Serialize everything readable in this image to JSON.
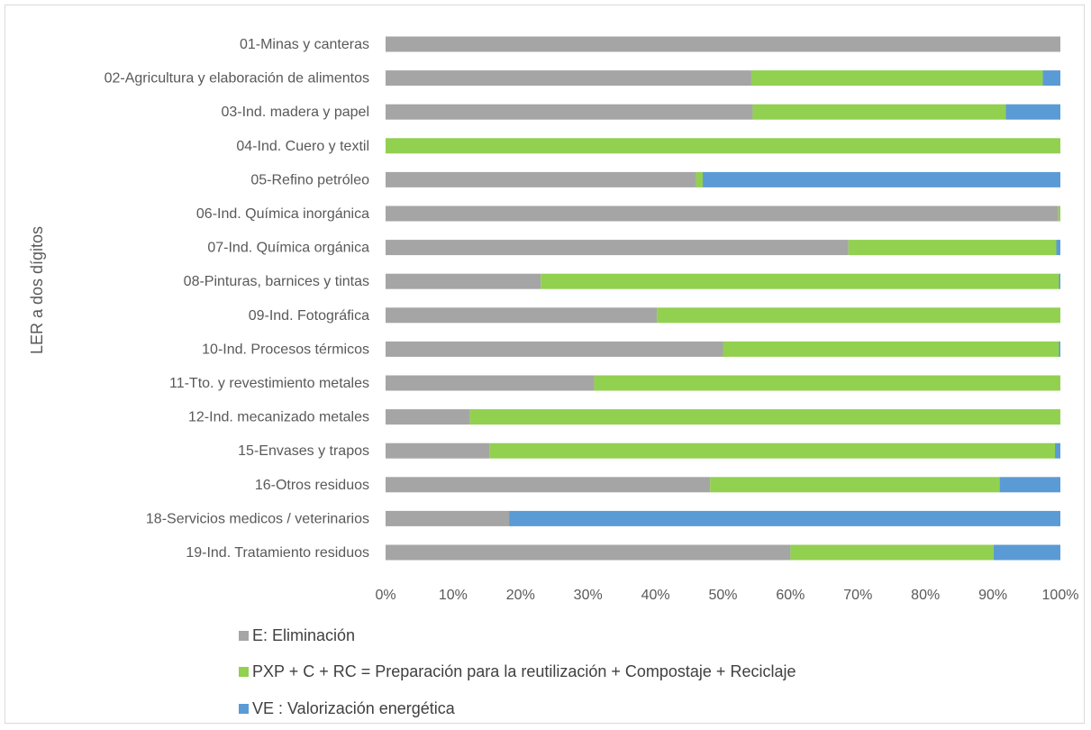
{
  "chart_data": {
    "type": "bar",
    "orientation": "horizontal",
    "stacked": "percent",
    "title": "",
    "xlabel": "",
    "ylabel": "LER a dos dígitos",
    "xlim": [
      0,
      100
    ],
    "x_ticks": [
      "0%",
      "10%",
      "20%",
      "30%",
      "40%",
      "50%",
      "60%",
      "70%",
      "80%",
      "90%",
      "100%"
    ],
    "grid": false,
    "legend_position": "bottom",
    "categories": [
      "01-Minas y canteras",
      "02-Agricultura y elaboración de alimentos",
      "03-Ind. madera y papel",
      "04-Ind. Cuero y textil",
      "05-Refino petróleo",
      "06-Ind. Química inorgánica",
      "07-Ind. Química orgánica",
      "08-Pinturas, barnices y tintas",
      "09-Ind. Fotográfica",
      "10-Ind. Procesos térmicos",
      "11-Tto. y revestimiento metales",
      "12-Ind. mecanizado metales",
      "15-Envases y trapos",
      "16-Otros residuos",
      "18-Servicios medicos / veterinarios",
      "19-Ind. Tratamiento residuos"
    ],
    "series": [
      {
        "name": "E: Eliminación",
        "color": "#a5a5a5",
        "values": [
          100,
          54.2,
          54.4,
          0,
          46,
          99.7,
          68.6,
          23,
          40.2,
          50,
          30.9,
          12.5,
          15.4,
          48.1,
          18.3,
          60
        ]
      },
      {
        "name": "PXP + C + RC = Preparación para la reutilización + Compostaje +  Reciclaje",
        "color": "#92d050",
        "values": [
          0,
          43.2,
          37.5,
          100,
          1,
          0.3,
          30.8,
          76.8,
          59.8,
          49.8,
          69.1,
          87.5,
          83.8,
          42.9,
          0,
          30.1
        ]
      },
      {
        "name": "VE : Valorización energética",
        "color": "#5b9bd5",
        "values": [
          0,
          2.6,
          8.1,
          0,
          53,
          0,
          0.6,
          0.2,
          0,
          0.2,
          0,
          0,
          0.8,
          9,
          81.7,
          9.9
        ]
      }
    ]
  }
}
